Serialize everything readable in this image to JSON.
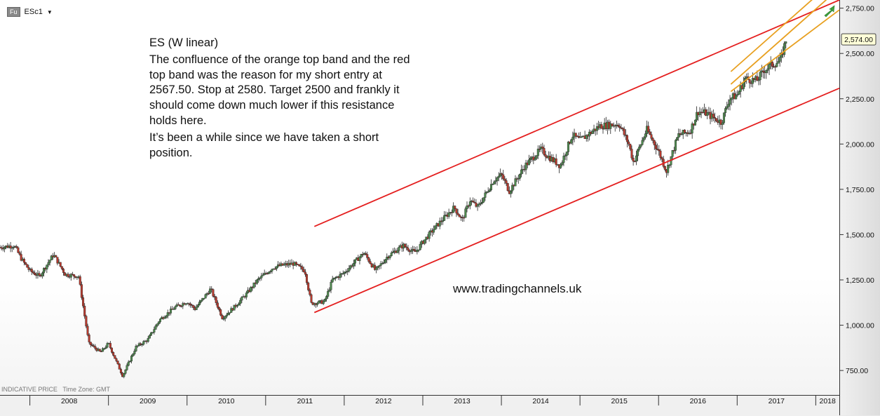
{
  "ticker": {
    "badge": "Fu",
    "symbol": "ESc1"
  },
  "annotation": {
    "title": "ES (W linear)",
    "paragraph1": "The confluence of the orange top band and the red top band was the reason for my short entry at 2567.50. Stop at 2580. Target 2500 and frankly it should come down much lower if this resistance holds here.",
    "paragraph2": "It’s been a while since we have taken a short position."
  },
  "website": "www.tradingchannels.uk",
  "footnote": {
    "price_type": "INDICATIVE PRICE",
    "timezone": "Time Zone: GMT"
  },
  "last_price_label": "2,574.00",
  "colors": {
    "up_candle": "#4f8a4f",
    "down_candle": "#b83a2e",
    "red_channel": "#e41f1f",
    "orange_channel": "#e8a020",
    "arrow": "#3fa23f",
    "last_price_bg": "#ffffd8"
  },
  "chart_data": {
    "type": "candlestick",
    "title": "",
    "xlabel": "",
    "ylabel": "",
    "x_ticks": [
      "2008",
      "2009",
      "2010",
      "2011",
      "2012",
      "2013",
      "2014",
      "2015",
      "2016",
      "2017",
      "2018"
    ],
    "y_ticks": [
      "750.00",
      "1,000.00",
      "1,250.00",
      "1,500.00",
      "1,750.00",
      "2,000.00",
      "2,250.00",
      "2,500.00",
      "2,750.00"
    ],
    "y_tick_values": [
      750,
      1000,
      1250,
      1500,
      1750,
      2000,
      2250,
      2500,
      2750
    ],
    "xlim": [
      2007.62,
      2018.3
    ],
    "ylim": [
      615,
      2795
    ],
    "grid": false,
    "price_path_approx": [
      [
        2007.62,
        1430
      ],
      [
        2007.8,
        1440
      ],
      [
        2007.9,
        1360
      ],
      [
        2008.0,
        1300
      ],
      [
        2008.12,
        1270
      ],
      [
        2008.3,
        1390
      ],
      [
        2008.45,
        1280
      ],
      [
        2008.62,
        1270
      ],
      [
        2008.75,
        900
      ],
      [
        2008.9,
        850
      ],
      [
        2009.0,
        900
      ],
      [
        2009.18,
        720
      ],
      [
        2009.35,
        880
      ],
      [
        2009.5,
        920
      ],
      [
        2009.65,
        1030
      ],
      [
        2009.85,
        1100
      ],
      [
        2010.0,
        1130
      ],
      [
        2010.1,
        1090
      ],
      [
        2010.3,
        1200
      ],
      [
        2010.45,
        1040
      ],
      [
        2010.6,
        1100
      ],
      [
        2010.75,
        1170
      ],
      [
        2010.9,
        1250
      ],
      [
        2011.1,
        1320
      ],
      [
        2011.2,
        1330
      ],
      [
        2011.35,
        1340
      ],
      [
        2011.5,
        1300
      ],
      [
        2011.58,
        1120
      ],
      [
        2011.75,
        1130
      ],
      [
        2011.85,
        1250
      ],
      [
        2012.0,
        1290
      ],
      [
        2012.25,
        1400
      ],
      [
        2012.4,
        1300
      ],
      [
        2012.55,
        1380
      ],
      [
        2012.75,
        1440
      ],
      [
        2012.9,
        1400
      ],
      [
        2013.0,
        1460
      ],
      [
        2013.2,
        1560
      ],
      [
        2013.4,
        1650
      ],
      [
        2013.5,
        1580
      ],
      [
        2013.6,
        1690
      ],
      [
        2013.7,
        1650
      ],
      [
        2013.9,
        1800
      ],
      [
        2014.0,
        1830
      ],
      [
        2014.1,
        1740
      ],
      [
        2014.3,
        1880
      ],
      [
        2014.5,
        1970
      ],
      [
        2014.6,
        1930
      ],
      [
        2014.75,
        1880
      ],
      [
        2014.9,
        2050
      ],
      [
        2015.0,
        2020
      ],
      [
        2015.25,
        2100
      ],
      [
        2015.5,
        2110
      ],
      [
        2015.62,
        2000
      ],
      [
        2015.68,
        1900
      ],
      [
        2015.85,
        2080
      ],
      [
        2016.0,
        1960
      ],
      [
        2016.1,
        1850
      ],
      [
        2016.25,
        2050
      ],
      [
        2016.4,
        2070
      ],
      [
        2016.5,
        2180
      ],
      [
        2016.6,
        2170
      ],
      [
        2016.8,
        2120
      ],
      [
        2016.9,
        2250
      ],
      [
        2017.0,
        2270
      ],
      [
        2017.1,
        2360
      ],
      [
        2017.25,
        2350
      ],
      [
        2017.35,
        2410
      ],
      [
        2017.45,
        2440
      ],
      [
        2017.55,
        2460
      ],
      [
        2017.62,
        2574
      ]
    ],
    "trendlines": [
      {
        "name": "red upper band",
        "points": [
          [
            2011.62,
            1545
          ],
          [
            2018.3,
            2795
          ]
        ]
      },
      {
        "name": "red lower band",
        "points": [
          [
            2011.62,
            1070
          ],
          [
            2018.3,
            2308
          ]
        ]
      },
      {
        "name": "orange band top",
        "points": [
          [
            2016.92,
            2400
          ],
          [
            2018.3,
            2930
          ]
        ]
      },
      {
        "name": "orange band middle",
        "points": [
          [
            2016.92,
            2330
          ],
          [
            2018.3,
            2860
          ]
        ]
      },
      {
        "name": "orange band bottom",
        "points": [
          [
            2016.92,
            2290
          ],
          [
            2018.3,
            2740
          ]
        ]
      }
    ]
  }
}
